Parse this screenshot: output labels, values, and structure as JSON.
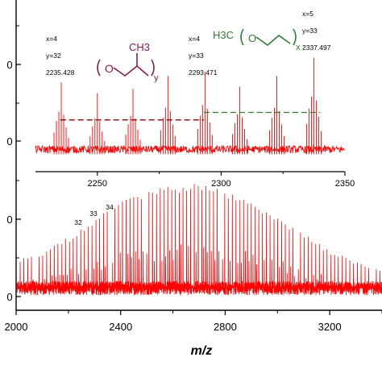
{
  "chart_data": [
    {
      "type": "line",
      "panel": "main",
      "xlabel": "m/z",
      "xlim": [
        2000,
        3400
      ],
      "x_ticks": [
        "2000",
        "2400",
        "2800",
        "3200"
      ],
      "ylabel": "",
      "y_ticks_visible": [
        "0",
        "0",
        "0",
        "0"
      ],
      "series_color": "#ff0000",
      "envelope": {
        "x": [
          2000,
          2100,
          2200,
          2300,
          2400,
          2500,
          2600,
          2700,
          2800,
          2900,
          3000,
          3100,
          3200,
          3300,
          3400
        ],
        "max": [
          0.36,
          0.42,
          0.55,
          0.7,
          0.86,
          0.96,
          1.0,
          1.0,
          0.95,
          0.84,
          0.72,
          0.58,
          0.44,
          0.34,
          0.28
        ],
        "baseline": 0.12
      },
      "chain_length_labels": [
        {
          "x": 2235,
          "label": "32"
        },
        {
          "x": 2293,
          "label": "33"
        },
        {
          "x": 2337,
          "label": "34"
        }
      ],
      "grid": false
    },
    {
      "type": "line",
      "panel": "inset",
      "xlim": [
        2225,
        2350
      ],
      "x_ticks": [
        "2250",
        "2300",
        "2350"
      ],
      "series_color": "#ff0000",
      "peak_series": [
        {
          "series_key": "propylene",
          "color": "#b22222",
          "dash_color": "#8b0000",
          "peaks": [
            2235.4,
            2293.5,
            2351.5
          ],
          "sub_peaks": [
            2220.0,
            2250.0,
            2264.4,
            2278.0,
            2308.0,
            2322.5,
            2336.0
          ],
          "height": 0.75
        },
        {
          "series_key": "ethylene",
          "color": "#b22222",
          "dash_color": "#2e7d32",
          "peaks": [
            2249.3,
            2293.3,
            2337.5
          ],
          "sub_peaks": [],
          "height": 0.8
        }
      ],
      "main_peaks": [
        {
          "x": 2235.428,
          "rel": 0.72
        },
        {
          "x": 2250.0,
          "rel": 0.62
        },
        {
          "x": 2264.4,
          "rel": 0.66
        },
        {
          "x": 2278.5,
          "rel": 0.78
        },
        {
          "x": 2293.471,
          "rel": 0.82
        },
        {
          "x": 2307.5,
          "rel": 0.68
        },
        {
          "x": 2322.5,
          "rel": 0.78
        },
        {
          "x": 2337.497,
          "rel": 0.95
        }
      ],
      "dashed_levels": [
        {
          "from": 2235,
          "to": 2293,
          "level": 0.37,
          "color": "#8b0000"
        },
        {
          "from": 2293,
          "to": 2340,
          "level": 0.44,
          "color": "#2e7d32"
        }
      ],
      "annotations": [
        {
          "x_label": "x=4",
          "y_label": "y=32",
          "mass": "2235.428"
        },
        {
          "x_label": "x=4",
          "y_label": "y=33",
          "mass": "2293.471"
        },
        {
          "x_label": "x=5",
          "y_label": "y=33",
          "mass": "2337.497"
        }
      ],
      "structures": {
        "polypropylene": {
          "color": "#8b1a5a",
          "subscript": "y",
          "substituent": "CH3",
          "atom": "O"
        },
        "polyethylene": {
          "color": "#2e7d32",
          "prefix": "H3C",
          "subscript": "x",
          "atom": "O"
        }
      }
    }
  ]
}
